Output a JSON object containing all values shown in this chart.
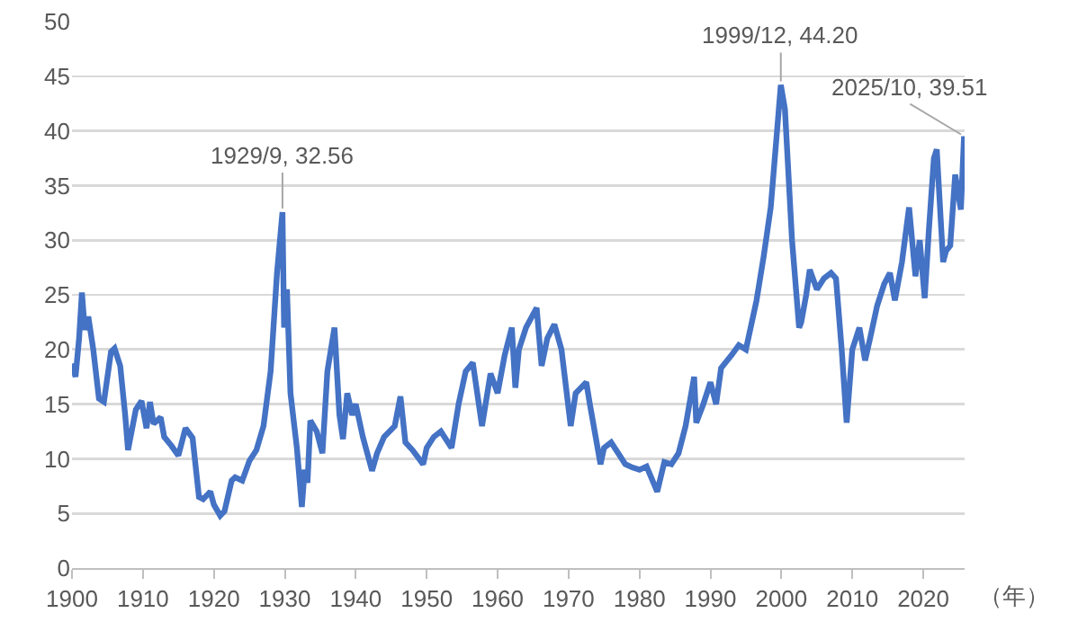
{
  "chart_data": {
    "type": "line",
    "xlabel": "（年）",
    "xlim": [
      1900,
      2025.83
    ],
    "xticks": [
      1900,
      1910,
      1920,
      1930,
      1940,
      1950,
      1960,
      1970,
      1980,
      1990,
      2000,
      2010,
      2020
    ],
    "ylim": [
      0,
      50
    ],
    "yticks": [
      0,
      5,
      10,
      15,
      20,
      25,
      30,
      35,
      40,
      45,
      50
    ],
    "grid": "y",
    "marker": "none",
    "line_style": "solid",
    "annotations": [
      {
        "text": "1929/9, 32.56",
        "x": 1929.67,
        "y": 32.56
      },
      {
        "text": "1999/12, 44.20",
        "x": 1999.92,
        "y": 44.2
      },
      {
        "text": "2025/10, 39.51",
        "x": 2025.75,
        "y": 39.51
      }
    ],
    "series": [
      {
        "color": "#4472c4",
        "x": [
          1900,
          1900.5,
          1901,
          1901.4,
          1901.8,
          1902.3,
          1903,
          1903.8,
          1904.5,
          1905.5,
          1906,
          1906.8,
          1907.5,
          1907.9,
          1909,
          1909.8,
          1910.5,
          1911,
          1911.5,
          1912.5,
          1913,
          1914,
          1915,
          1916,
          1917,
          1917.9,
          1918.5,
          1919.5,
          1920,
          1920.9,
          1921.5,
          1922.5,
          1923,
          1924,
          1925,
          1926,
          1927,
          1928,
          1928.9,
          1929.67,
          1929.9,
          1930.3,
          1930.8,
          1931.7,
          1932.4,
          1932.8,
          1933.2,
          1933.6,
          1934.5,
          1935.3,
          1936,
          1937,
          1937.7,
          1938.2,
          1938.8,
          1939.5,
          1940,
          1941,
          1942.3,
          1943,
          1944,
          1945.5,
          1946.3,
          1947,
          1948,
          1949.5,
          1950,
          1951,
          1952,
          1953.5,
          1954.5,
          1955.5,
          1956.5,
          1957.8,
          1959,
          1960,
          1961,
          1962,
          1962.5,
          1963,
          1964,
          1965.5,
          1966.2,
          1967,
          1968,
          1969,
          1970.3,
          1971,
          1972.5,
          1973,
          1974.5,
          1975,
          1976,
          1977,
          1978,
          1979,
          1980,
          1981,
          1982.5,
          1983.5,
          1984.5,
          1985.5,
          1986.5,
          1987.7,
          1988,
          1989,
          1990,
          1990.8,
          1991.5,
          1993,
          1994,
          1995,
          1996.5,
          1997.5,
          1998.5,
          1999.92,
          2000.5,
          2001.5,
          2002.5,
          2002.8,
          2003.5,
          2004,
          2005,
          2006,
          2007,
          2007.7,
          2008.5,
          2009.2,
          2010,
          2011,
          2011.8,
          2012.5,
          2013.5,
          2014.5,
          2015.3,
          2016,
          2017,
          2018,
          2018.9,
          2019.5,
          2020.2,
          2020.8,
          2021.5,
          2021.9,
          2022.8,
          2023.2,
          2023.8,
          2024.5,
          2025.3,
          2025.75
        ],
        "values": [
          18.7,
          17.5,
          21,
          25.2,
          21.8,
          23,
          20,
          15.5,
          15.2,
          19.8,
          20.1,
          18.5,
          14,
          10.8,
          14.5,
          15.3,
          12.8,
          15.2,
          13.2,
          13.8,
          12,
          11.2,
          10.3,
          12.8,
          11.9,
          6.5,
          6.3,
          7,
          5.8,
          4.8,
          5.2,
          8,
          8.3,
          8,
          9.8,
          10.8,
          13,
          18,
          27,
          32.56,
          22,
          25.5,
          16,
          11,
          5.6,
          9,
          7.8,
          13.5,
          12.5,
          10.5,
          18,
          22,
          14,
          11.8,
          16,
          14,
          15,
          12,
          8.9,
          10.5,
          12,
          13,
          15.7,
          11.5,
          10.8,
          9.5,
          11,
          12,
          12.5,
          11,
          15,
          18,
          18.8,
          13,
          17.8,
          16,
          19.5,
          22,
          16.5,
          20,
          22,
          23.8,
          18.5,
          21,
          22.3,
          20,
          13,
          16,
          17,
          15,
          9.5,
          11,
          11.5,
          10.5,
          9.5,
          9.2,
          9,
          9.3,
          7,
          9.7,
          9.5,
          10.5,
          13,
          17.5,
          13.3,
          15,
          17,
          15,
          18.3,
          19.5,
          20.4,
          20,
          24.5,
          28.5,
          33,
          44.2,
          42,
          30,
          22,
          22.5,
          25,
          27.3,
          25.5,
          26.5,
          27,
          26.5,
          20,
          13.3,
          20,
          22,
          19,
          21,
          24,
          26,
          27,
          24.5,
          28,
          33,
          26.7,
          30,
          24.7,
          31,
          37.5,
          38.3,
          28,
          29,
          29.5,
          36,
          32.8,
          39.51
        ]
      }
    ]
  }
}
